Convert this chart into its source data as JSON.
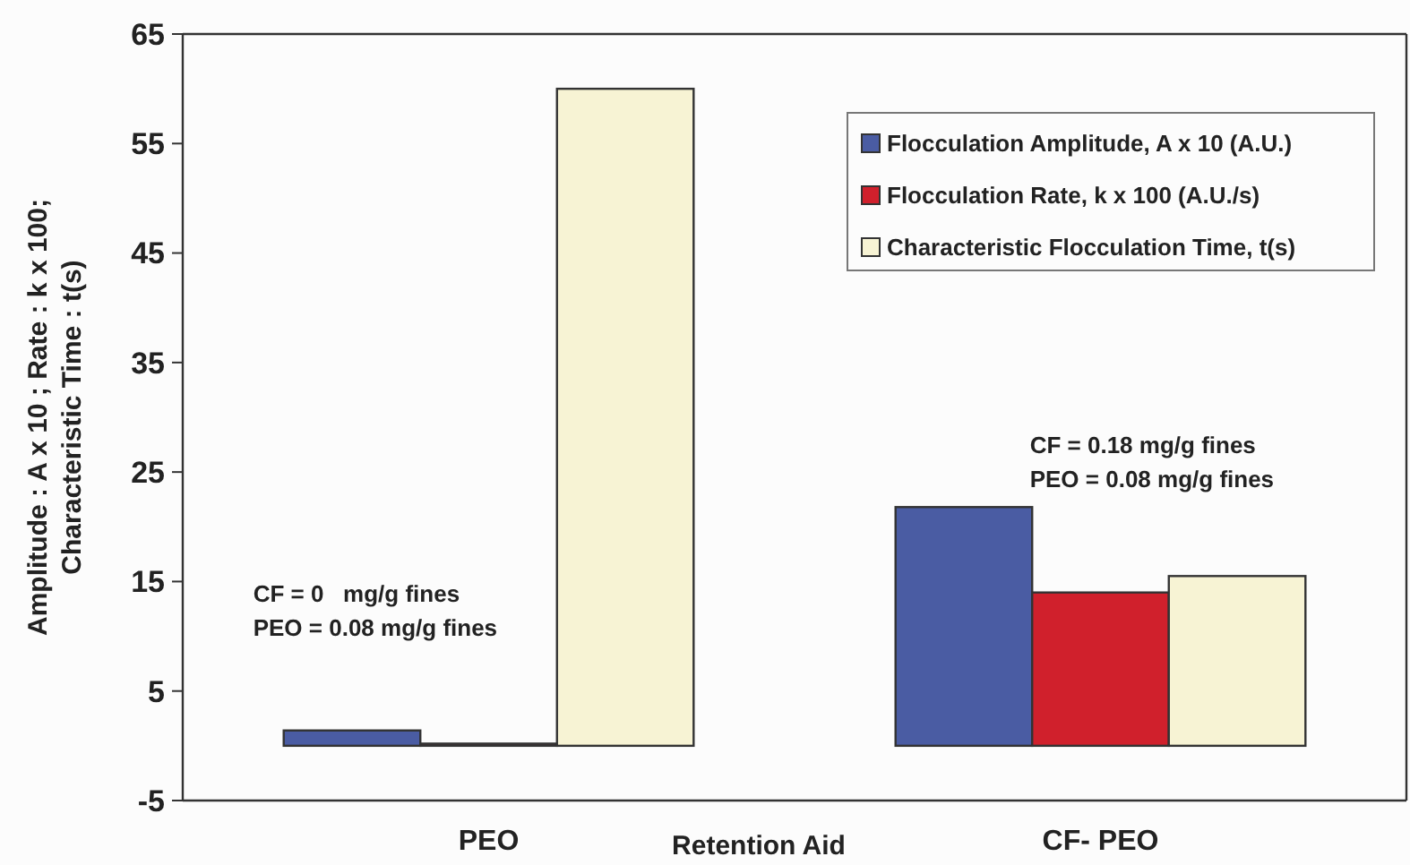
{
  "chart_data": {
    "type": "bar",
    "xlabel": "Retention Aid",
    "ylabel": "Amplitude : A x 10 ; Rate : k x 100;\nCharacteristic Time : t(s)",
    "categories": [
      "PEO",
      "CF- PEO"
    ],
    "series": [
      {
        "name": "Flocculation Amplitude, A x 10 (A.U.)",
        "color": "#4a5ca3",
        "values": [
          1.4,
          21.8
        ]
      },
      {
        "name": "Flocculation Rate, k x 100 (A.U./s)",
        "color": "#d0202c",
        "values": [
          0.2,
          14.0
        ]
      },
      {
        "name": "Characteristic Flocculation Time, t(s)",
        "color": "#f7f3d4",
        "values": [
          60,
          15.5
        ]
      }
    ],
    "ylim": [
      -5,
      65
    ],
    "yticks": [
      -5,
      5,
      15,
      25,
      35,
      45,
      55,
      65
    ],
    "grid": false,
    "legend": "top right",
    "annotations": [
      "CF = 0   mg/g fines\nPEO = 0.08 mg/g fines",
      "CF = 0.18 mg/g fines\nPEO = 0.08 mg/g fines"
    ]
  }
}
